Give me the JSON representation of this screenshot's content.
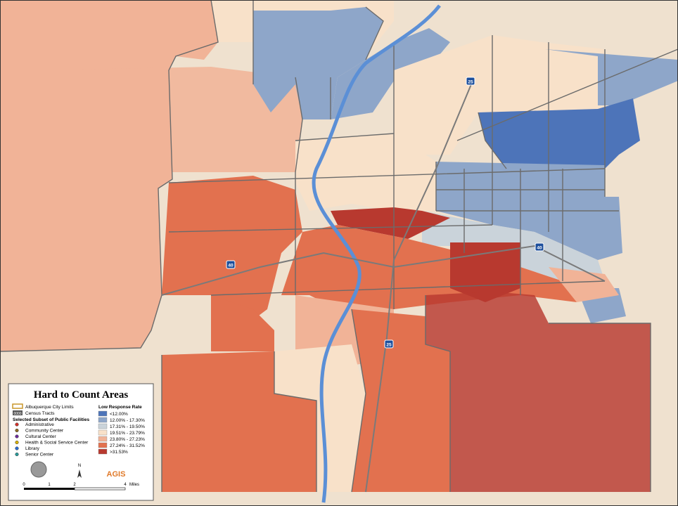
{
  "legend": {
    "title": "Hard to Count Areas",
    "city_limits": "Albuquerque City Limits",
    "tract_sample": "0000",
    "census_tracts": "Census Tracts",
    "facilities_title": "Selected Subset of Public Facilities",
    "facilities": [
      {
        "label": "Administrative",
        "color": "#d0302a"
      },
      {
        "label": "Community Center",
        "color": "#8a6a20"
      },
      {
        "label": "Cultural Center",
        "color": "#6a2a9a"
      },
      {
        "label": "Health & Social Service Center",
        "color": "#d8b000"
      },
      {
        "label": "Library",
        "color": "#2a6ad0"
      },
      {
        "label": "Senior Center",
        "color": "#2a9a9a"
      }
    ],
    "response_title": "Low Response Rate",
    "response_classes": [
      {
        "label": "<12.00%",
        "color": "#4d74b9"
      },
      {
        "label": "12.00% - 17.30%",
        "color": "#8ea6c9"
      },
      {
        "label": "17.31% - 19.50%",
        "color": "#cad3da"
      },
      {
        "label": "19.51% - 23.79%",
        "color": "#f8e1c9"
      },
      {
        "label": "23.80% - 27.23%",
        "color": "#f1b397"
      },
      {
        "label": "27.24% - 31.52%",
        "color": "#e2714f"
      },
      {
        "label": ">31.53%",
        "color": "#b8392f"
      }
    ]
  },
  "scale": {
    "ticks": [
      "0",
      "1",
      "2",
      "4"
    ],
    "unit": "Miles"
  },
  "north": "N",
  "logo": "AGIS",
  "highways": [
    "40",
    "25",
    "40",
    "25"
  ]
}
